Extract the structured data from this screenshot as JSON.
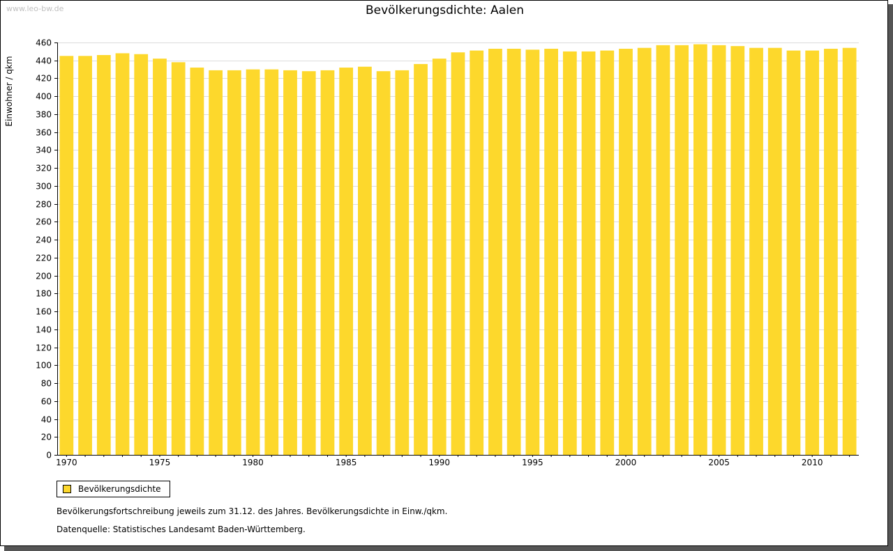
{
  "watermark": "www.leo-bw.de",
  "chart_data": {
    "type": "bar",
    "title": "Bevölkerungsdichte: Aalen",
    "xlabel": "",
    "ylabel": "Einwohner / qkm",
    "ylim": [
      0,
      460
    ],
    "ytick_step": 20,
    "xtick_labels": [
      "1970",
      "1975",
      "1980",
      "1985",
      "1990",
      "1995",
      "2000",
      "2005",
      "2010"
    ],
    "grid": true,
    "bar_color": "#fdd82c",
    "legend_position": "bottom-left",
    "categories": [
      "1970",
      "1971",
      "1972",
      "1973",
      "1974",
      "1975",
      "1976",
      "1977",
      "1978",
      "1979",
      "1980",
      "1981",
      "1982",
      "1983",
      "1984",
      "1985",
      "1986",
      "1987",
      "1988",
      "1989",
      "1990",
      "1991",
      "1992",
      "1993",
      "1994",
      "1995",
      "1996",
      "1997",
      "1998",
      "1999",
      "2000",
      "2001",
      "2002",
      "2003",
      "2004",
      "2005",
      "2006",
      "2007",
      "2008",
      "2009",
      "2010",
      "2011",
      "2012"
    ],
    "series": [
      {
        "name": "Bevölkerungsdichte",
        "values": [
          445,
          445,
          446,
          448,
          447,
          442,
          438,
          432,
          429,
          429,
          430,
          430,
          429,
          428,
          429,
          432,
          433,
          428,
          429,
          436,
          442,
          449,
          451,
          453,
          453,
          452,
          453,
          450,
          450,
          451,
          453,
          454,
          457,
          457,
          458,
          457,
          456,
          454,
          454,
          451,
          451,
          453,
          454
        ]
      }
    ]
  },
  "notes": {
    "line1": "Bevölkerungsfortschreibung jeweils zum 31.12. des Jahres. Bevölkerungsdichte in Einw./qkm.",
    "line2": "Datenquelle: Statistisches Landesamt Baden-Württemberg."
  }
}
